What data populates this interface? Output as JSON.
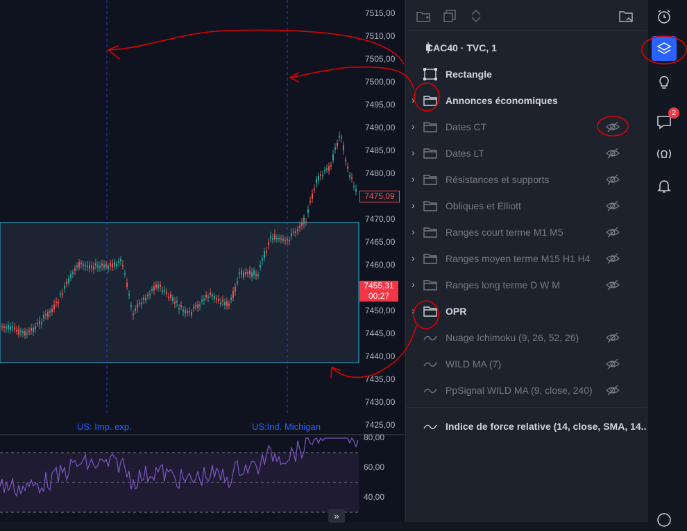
{
  "price_scale": [
    "7515,00",
    "7510,00",
    "7505,00",
    "7500,00",
    "7495,00",
    "7490,00",
    "7485,00",
    "7480,00",
    "7475,00",
    "7470,00",
    "7465,00",
    "7460,00",
    "7455,00",
    "7450,00",
    "7445,00",
    "7440,00",
    "7435,00",
    "7430,00",
    "7425,00"
  ],
  "last_price": "7475,09",
  "current_price": "7455,31",
  "countdown": "00:27",
  "events": [
    "US: Imp. exp.",
    "US:Ind. Michigan"
  ],
  "rsi_scale": [
    "80,00",
    "60,00",
    "40,00"
  ],
  "panel": {
    "symbol": "CAC40 · TVC, 1",
    "rows": [
      {
        "label": "Rectangle",
        "icon": "rectangle-icon",
        "folder": false,
        "dim": false,
        "eye": false
      },
      {
        "label": "Annonces économiques",
        "icon": "folder-icon",
        "folder": true,
        "dim": false,
        "eye": false
      },
      {
        "label": "Dates CT",
        "icon": "folder-icon",
        "folder": true,
        "dim": true,
        "eye": true
      },
      {
        "label": "Dates LT",
        "icon": "folder-icon",
        "folder": true,
        "dim": true,
        "eye": true
      },
      {
        "label": "Résistances et supports",
        "icon": "folder-icon",
        "folder": true,
        "dim": true,
        "eye": true
      },
      {
        "label": "Obliques et Elliott",
        "icon": "folder-icon",
        "folder": true,
        "dim": true,
        "eye": true
      },
      {
        "label": "Ranges court terme M1 M5",
        "icon": "folder-icon",
        "folder": true,
        "dim": true,
        "eye": true
      },
      {
        "label": "Ranges moyen terme M15 H1 H4",
        "icon": "folder-icon",
        "folder": true,
        "dim": true,
        "eye": true
      },
      {
        "label": "Ranges long terme D W M",
        "icon": "folder-icon",
        "folder": true,
        "dim": true,
        "eye": true
      },
      {
        "label": "OPR",
        "icon": "folder-icon",
        "folder": true,
        "dim": false,
        "eye": false
      },
      {
        "label": "Nuage Ichimoku (9, 26, 52, 26)",
        "icon": "indicator-icon",
        "folder": false,
        "dim": true,
        "eye": true
      },
      {
        "label": "WILD MA (7)",
        "icon": "indicator-icon",
        "folder": false,
        "dim": true,
        "eye": true
      },
      {
        "label": "PpSignal WILD MA (9, close, 240)",
        "icon": "indicator-icon",
        "folder": false,
        "dim": true,
        "eye": true
      }
    ],
    "rsi_row": "Indice de force relative (14, close, SMA, 14..."
  },
  "right_bar": {
    "notification_count": "2"
  },
  "colors": {
    "accent": "#2962ff",
    "up": "#26a69a",
    "down": "#ef5350",
    "annotation": "#e00000"
  }
}
